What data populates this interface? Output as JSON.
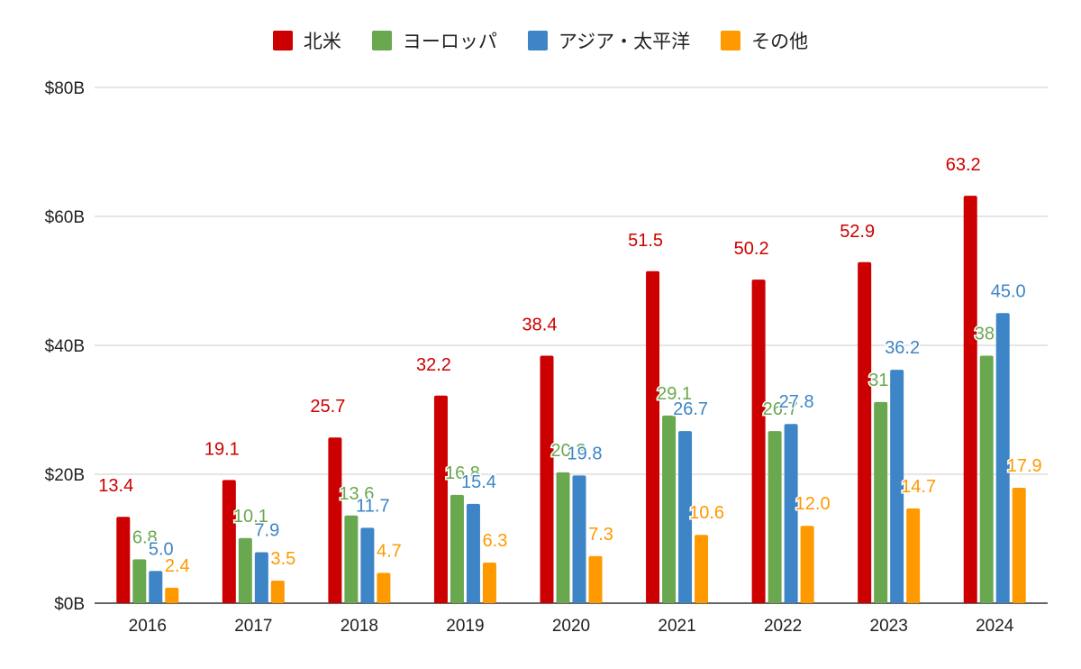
{
  "chart_data": {
    "type": "bar",
    "categories": [
      "2016",
      "2017",
      "2018",
      "2019",
      "2020",
      "2021",
      "2022",
      "2023",
      "2024"
    ],
    "series": [
      {
        "name": "北米",
        "color": "#cc0000",
        "values": [
          13.4,
          19.1,
          25.7,
          32.2,
          38.4,
          51.5,
          50.2,
          52.9,
          63.2
        ]
      },
      {
        "name": "ヨーロッパ",
        "color": "#6aa84f",
        "values": [
          6.8,
          10.1,
          13.6,
          16.8,
          20.3,
          29.1,
          26.7,
          31.2,
          38.4
        ]
      },
      {
        "name": "アジア・太平洋",
        "color": "#3d85c6",
        "values": [
          5.0,
          7.9,
          11.7,
          15.4,
          19.8,
          26.7,
          27.8,
          36.2,
          45.0
        ]
      },
      {
        "name": "その他",
        "color": "#ff9900",
        "values": [
          2.4,
          3.5,
          4.7,
          6.3,
          7.3,
          10.6,
          12.0,
          14.7,
          17.9
        ]
      }
    ],
    "y_ticks": [
      "$0B",
      "$20B",
      "$40B",
      "$60B",
      "$80B"
    ],
    "ylim": [
      0,
      80
    ],
    "grid": true,
    "legend_position": "top-center",
    "data_labels": true
  }
}
